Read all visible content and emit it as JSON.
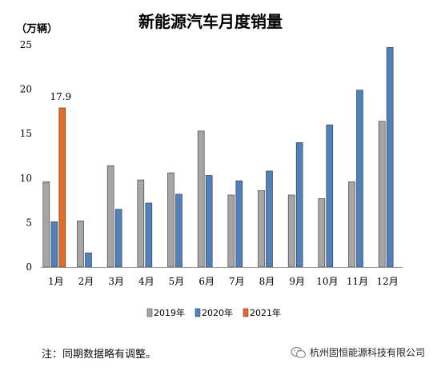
{
  "chart_data": {
    "type": "bar",
    "title": "新能源汽车月度销量",
    "unit_label": "（万辆）",
    "categories": [
      "1月",
      "2月",
      "3月",
      "4月",
      "5月",
      "6月",
      "7月",
      "8月",
      "9月",
      "10月",
      "11月",
      "12月"
    ],
    "series": [
      {
        "name": "2019年",
        "color": "#a6a6a6",
        "values": [
          9.6,
          5.2,
          11.4,
          9.8,
          10.6,
          15.3,
          8.1,
          8.6,
          8.1,
          7.7,
          9.6,
          16.4
        ]
      },
      {
        "name": "2020年",
        "color": "#4f81bd",
        "values": [
          5.1,
          1.6,
          6.5,
          7.2,
          8.2,
          10.3,
          9.7,
          10.8,
          14.0,
          16.0,
          19.9,
          24.7
        ]
      },
      {
        "name": "2021年",
        "color": "#e46c2b",
        "values": [
          17.9,
          null,
          null,
          null,
          null,
          null,
          null,
          null,
          null,
          null,
          null,
          null
        ]
      }
    ],
    "data_labels": [
      {
        "series": "2021年",
        "category": "1月",
        "text": "17.9"
      }
    ],
    "ylim": [
      0,
      25
    ],
    "yticks": [
      0,
      5,
      10,
      15,
      20,
      25
    ],
    "legend_position": "bottom"
  },
  "note": "注：同期数据略有调整。",
  "brand": {
    "icon": "wechat-icon",
    "text": "杭州固恒能源科技有限公司"
  }
}
